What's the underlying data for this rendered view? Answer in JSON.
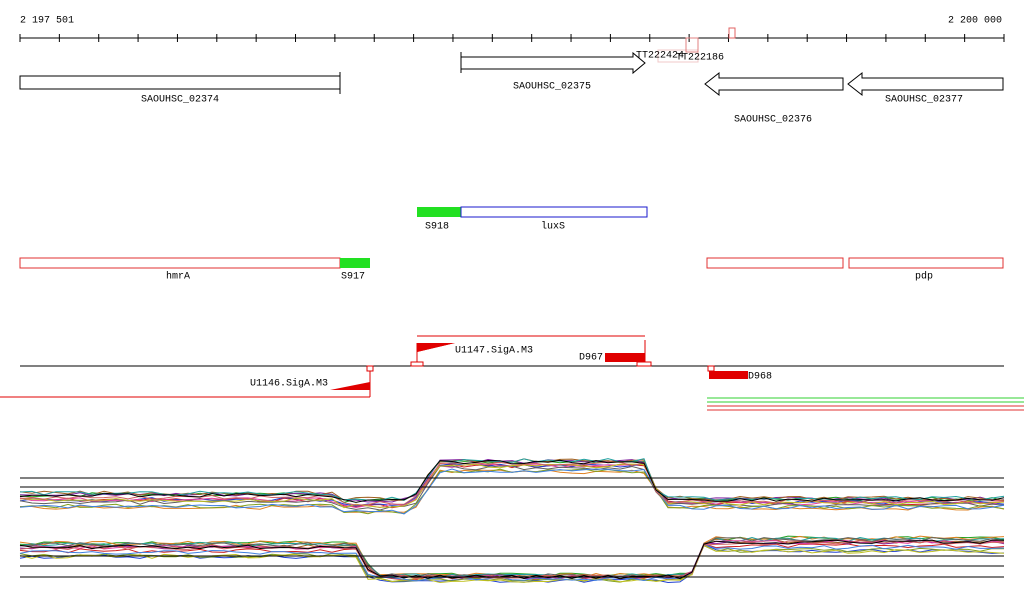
{
  "ruler": {
    "start": "2 197 501",
    "end": "2 200 000"
  },
  "genes": [
    {
      "label": "SAOUHSC_02374"
    },
    {
      "label": "SAOUHSC_02375"
    },
    {
      "label": "SAOUHSC_02376"
    },
    {
      "label": "SAOUHSC_02377"
    }
  ],
  "overlap_labels": [
    "TT222424",
    "TT222186"
  ],
  "features": [
    {
      "label": "S918"
    },
    {
      "label": "luxS"
    },
    {
      "label": "hmrA"
    },
    {
      "label": "S917"
    },
    {
      "label": "pdp"
    }
  ],
  "regulation": [
    {
      "label": "U1147.SigA.M3"
    },
    {
      "label": "D967"
    },
    {
      "label": "U1146.SigA.M3"
    },
    {
      "label": "D968"
    }
  ]
}
